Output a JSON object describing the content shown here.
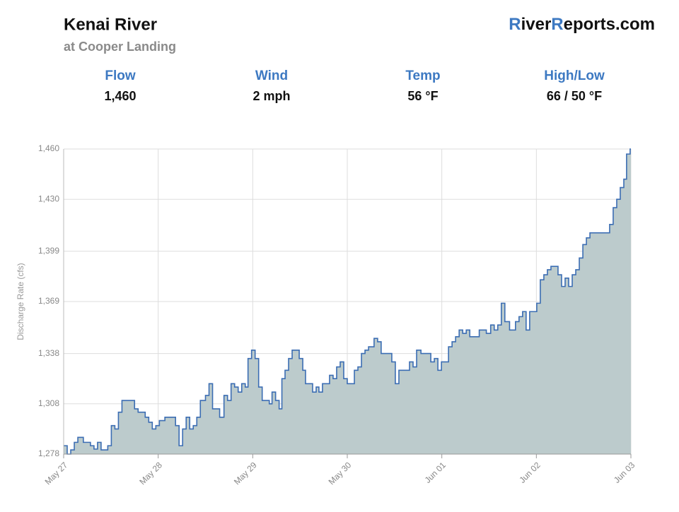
{
  "header": {
    "title": "Kenai River",
    "subtitle": "at Cooper Landing",
    "brand": [
      {
        "text": "R",
        "color": "#3d79c2"
      },
      {
        "text": "iver",
        "color": "#111111"
      },
      {
        "text": "R",
        "color": "#3d79c2"
      },
      {
        "text": "eports.com",
        "color": "#111111"
      }
    ]
  },
  "stats": [
    {
      "label": "Flow",
      "value": "1,460"
    },
    {
      "label": "Wind",
      "value": "2 mph"
    },
    {
      "label": "Temp",
      "value": "56 °F"
    },
    {
      "label": "High/Low",
      "value": "66 / 50 °F"
    }
  ],
  "chart_data": {
    "type": "step-area",
    "y_label": "Discharge Rate (cfs)",
    "color": "#3b6db3",
    "fill": "#bccbcc",
    "grid": true,
    "xlim": [
      0,
      144
    ],
    "xticks": [
      {
        "value": 0,
        "label": "May 27"
      },
      {
        "value": 24,
        "label": "May 28"
      },
      {
        "value": 48,
        "label": "May 29"
      },
      {
        "value": 72,
        "label": "May 30"
      },
      {
        "value": 96,
        "label": "Jun 01"
      },
      {
        "value": 120,
        "label": "Jun 02"
      },
      {
        "value": 144,
        "label": "Jun 03"
      }
    ],
    "ylim": [
      1278,
      1460
    ],
    "yticks": [
      {
        "value": 1278,
        "label": "1,278"
      },
      {
        "value": 1308,
        "label": "1,308"
      },
      {
        "value": 1338,
        "label": "1,338"
      },
      {
        "value": 1369,
        "label": "1,369"
      },
      {
        "value": 1399,
        "label": "1,399"
      },
      {
        "value": 1430,
        "label": "1,430"
      },
      {
        "value": 1460,
        "label": "1,460"
      }
    ],
    "x": [
      0,
      0.9,
      1.8,
      2.7,
      3.6,
      5.0,
      6.8,
      7.7,
      8.6,
      9.5,
      11.2,
      12.1,
      13.0,
      13.9,
      14.8,
      18.0,
      18.9,
      20.7,
      21.6,
      22.5,
      23.4,
      24.3,
      25.7,
      28.4,
      29.3,
      30.2,
      31.1,
      32.0,
      32.9,
      33.8,
      34.7,
      36.0,
      36.9,
      37.8,
      39.6,
      40.7,
      41.6,
      42.5,
      43.4,
      44.3,
      45.2,
      46.1,
      46.8,
      47.7,
      48.6,
      49.5,
      50.4,
      52.2,
      52.9,
      53.8,
      54.7,
      55.4,
      56.2,
      57.1,
      58.0,
      59.8,
      60.7,
      61.4,
      63.2,
      64.1,
      64.8,
      65.7,
      67.5,
      68.4,
      69.3,
      70.2,
      71.1,
      72.0,
      73.8,
      74.7,
      75.6,
      76.5,
      77.4,
      78.8,
      79.7,
      80.6,
      83.3,
      84.2,
      85.1,
      87.8,
      88.7,
      89.6,
      90.7,
      93.2,
      94.1,
      95.0,
      95.9,
      97.7,
      98.6,
      99.5,
      100.4,
      101.3,
      102.2,
      103.1,
      105.5,
      107.3,
      108.4,
      109.3,
      110.2,
      111.1,
      112.0,
      113.2,
      114.7,
      115.6,
      116.5,
      117.4,
      118.3,
      120.1,
      121.0,
      121.9,
      122.8,
      123.7,
      125.5,
      126.4,
      127.3,
      128.2,
      129.1,
      130.0,
      130.9,
      131.8,
      132.7,
      133.6,
      138.6,
      139.5,
      140.4,
      141.3,
      142.2,
      142.9,
      143.8
    ],
    "values": [
      1283,
      1278,
      1280.5,
      1285,
      1288,
      1285,
      1283,
      1281,
      1285,
      1280.5,
      1283,
      1295,
      1293,
      1303,
      1310,
      1305,
      1303,
      1300,
      1297,
      1293,
      1295,
      1298,
      1300,
      1295,
      1283,
      1293,
      1300,
      1293,
      1295,
      1300,
      1310,
      1313,
      1320,
      1305,
      1300,
      1313,
      1310,
      1320,
      1318,
      1315,
      1320,
      1318,
      1335,
      1340,
      1335,
      1318,
      1310,
      1308,
      1315,
      1310,
      1305,
      1323,
      1328,
      1335,
      1340,
      1335,
      1328,
      1320,
      1315,
      1318,
      1315,
      1320,
      1325,
      1323,
      1330,
      1333,
      1323,
      1320,
      1328,
      1330,
      1338,
      1340,
      1342,
      1347,
      1345,
      1338,
      1333,
      1320,
      1328,
      1333,
      1330,
      1340,
      1338,
      1333,
      1335,
      1328,
      1333,
      1342,
      1345,
      1348,
      1352,
      1350,
      1352,
      1348,
      1352,
      1350,
      1355,
      1352,
      1355,
      1368,
      1357,
      1352,
      1357,
      1360,
      1363,
      1352,
      1363,
      1368,
      1382,
      1385,
      1388,
      1390,
      1385,
      1378,
      1383,
      1378,
      1385,
      1388,
      1395,
      1403,
      1407,
      1410,
      1415,
      1425,
      1430,
      1437,
      1442,
      1457,
      1460
    ]
  }
}
